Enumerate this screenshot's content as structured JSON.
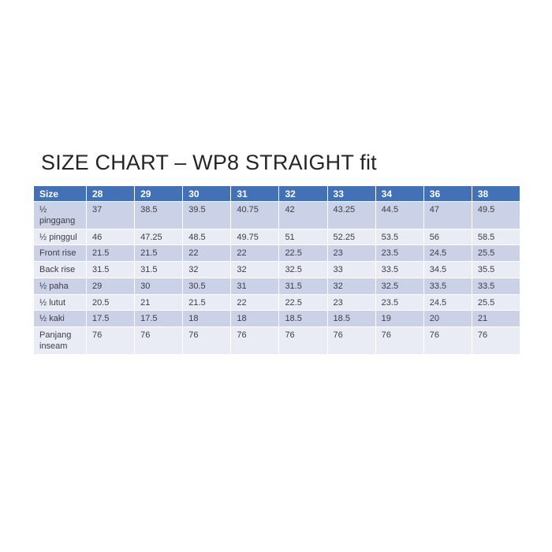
{
  "title": "SIZE CHART – WP8 STRAIGHT fit",
  "chart_data": {
    "type": "table",
    "title": "SIZE CHART – WP8 STRAIGHT fit",
    "columns": [
      "Size",
      "28",
      "29",
      "30",
      "31",
      "32",
      "33",
      "34",
      "36",
      "38"
    ],
    "rows": [
      {
        "label": "½ pinggang",
        "values": [
          "37",
          "38.5",
          "39.5",
          "40.75",
          "42",
          "43.25",
          "44.5",
          "47",
          "49.5"
        ]
      },
      {
        "label": "½ pinggul",
        "values": [
          "46",
          "47.25",
          "48.5",
          "49.75",
          "51",
          "52.25",
          "53.5",
          "56",
          "58.5"
        ]
      },
      {
        "label": "Front rise",
        "values": [
          "21.5",
          "21.5",
          "22",
          "22",
          "22.5",
          "23",
          "23.5",
          "24.5",
          "25.5"
        ]
      },
      {
        "label": "Back rise",
        "values": [
          "31.5",
          "31.5",
          "32",
          "32",
          "32.5",
          "33",
          "33.5",
          "34.5",
          "35.5"
        ]
      },
      {
        "label": "½ paha",
        "values": [
          "29",
          "30",
          "30.5",
          "31",
          "31.5",
          "32",
          "32.5",
          "33.5",
          "33.5"
        ]
      },
      {
        "label": "½ lutut",
        "values": [
          "20.5",
          "21",
          "21.5",
          "22",
          "22.5",
          "23",
          "23.5",
          "24.5",
          "25.5"
        ]
      },
      {
        "label": "½ kaki",
        "values": [
          "17.5",
          "17.5",
          "18",
          "18",
          "18.5",
          "18.5",
          "19",
          "20",
          "21"
        ]
      },
      {
        "label": "Panjang inseam",
        "values": [
          "76",
          "76",
          "76",
          "76",
          "76",
          "76",
          "76",
          "76",
          "76"
        ]
      }
    ],
    "layout": {
      "banded_rows": true,
      "header_position": "top",
      "label_column": "left"
    }
  },
  "colors": {
    "page_bg": "#ffffff",
    "header_bg": "#4271b7",
    "header_text": "#ffffff",
    "band_a": "#cbd2e8",
    "band_b": "#e9ecf5",
    "grid": "#ffffff",
    "cell_text": "#3d3d44",
    "title_text": "#262626"
  }
}
